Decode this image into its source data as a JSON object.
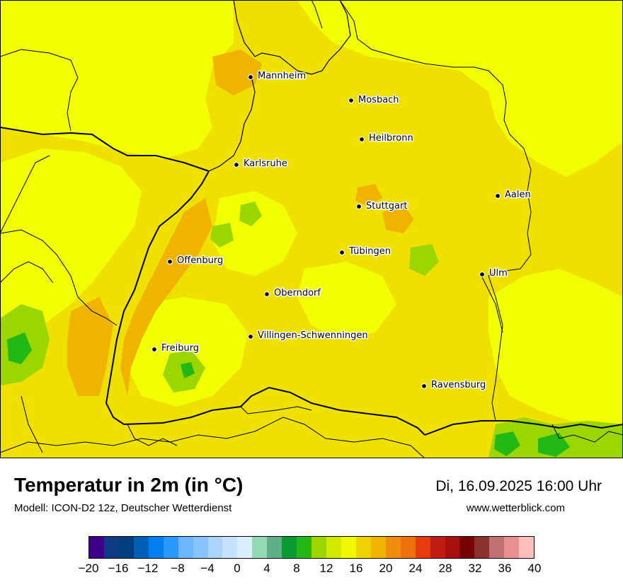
{
  "title": "Temperatur in 2m (in °C)",
  "model": "Modell: ICON-D2 12z, Deutscher Wetterdienst",
  "datetime": "Di, 16.09.2025 16:00 Uhr",
  "website": "www.wetterblick.com",
  "cities": [
    {
      "name": "Mannheim"
    },
    {
      "name": "Mosbach"
    },
    {
      "name": "Heilbronn"
    },
    {
      "name": "Karlsruhe"
    },
    {
      "name": "Aalen"
    },
    {
      "name": "Stuttgart"
    },
    {
      "name": "Tübingen"
    },
    {
      "name": "Offenburg"
    },
    {
      "name": "Ulm"
    },
    {
      "name": "Oberndorf"
    },
    {
      "name": "Villingen-Schwenningen"
    },
    {
      "name": "Freiburg"
    },
    {
      "name": "Ravensburg"
    }
  ],
  "legend": {
    "min": -20,
    "max": 40,
    "step": 2,
    "colors": [
      "#3b0087",
      "#0d3a84",
      "#003f7e",
      "#0060b8",
      "#0080ee",
      "#2a98ff",
      "#6cb7ff",
      "#88c4ff",
      "#a8d4ff",
      "#c6e2ff",
      "#dbeeff",
      "#93d9b4",
      "#5fb08a",
      "#0a9a32",
      "#24b814",
      "#9cd600",
      "#d0eb00",
      "#f0f800",
      "#f0d200",
      "#f0b400",
      "#f08c10",
      "#f0700c",
      "#e83a0a",
      "#c01c14",
      "#a81010",
      "#780000",
      "#8c3030",
      "#c07070",
      "#e89090",
      "#ffbcbc"
    ],
    "tick_labels": [
      "−20",
      "−16",
      "−12",
      "−8",
      "−4",
      "0",
      "4",
      "8",
      "12",
      "16",
      "20",
      "24",
      "28",
      "32",
      "36",
      "40"
    ]
  }
}
